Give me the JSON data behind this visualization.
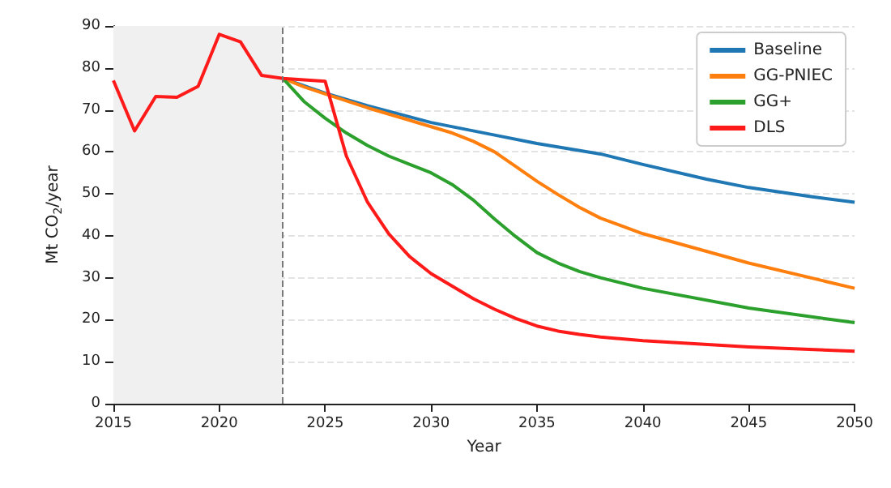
{
  "chart_data": {
    "type": "line",
    "xlabel": "Year",
    "ylabel": "Mt CO$_{2}$/year",
    "xlim": [
      2015,
      2050
    ],
    "xticks": [
      2015,
      2020,
      2025,
      2030,
      2035,
      2040,
      2045,
      2050
    ],
    "ylim": [
      0,
      90
    ],
    "yticks": [
      0,
      10,
      20,
      30,
      40,
      50,
      60,
      70,
      80,
      90
    ],
    "grid": "y",
    "legend": "top right",
    "marker": "none",
    "line_style": "solid",
    "series": [
      {
        "name": "Baseline",
        "color": "#1f77b4",
        "x": [
          2023,
          2025,
          2027,
          2030,
          2033,
          2035,
          2038,
          2040,
          2043,
          2045,
          2048,
          2050
        ],
        "values": [
          77.5,
          74,
          71,
          67,
          64,
          62,
          59.5,
          57,
          53.5,
          51.5,
          49.3,
          48
        ]
      },
      {
        "name": "GG-PNIEC",
        "color": "#ff7f0e",
        "x": [
          2023,
          2024,
          2025,
          2027,
          2030,
          2031,
          2032,
          2033,
          2034,
          2035,
          2036,
          2037,
          2038,
          2040,
          2045,
          2050
        ],
        "values": [
          77.5,
          75.5,
          73.8,
          70.5,
          66,
          64.5,
          62.5,
          60,
          56.5,
          53,
          49.8,
          46.8,
          44.2,
          40.5,
          33.5,
          27.5
        ]
      },
      {
        "name": "GG+",
        "color": "#2ca02c",
        "x": [
          2023,
          2024,
          2025,
          2026,
          2027,
          2028,
          2029,
          2030,
          2031,
          2032,
          2033,
          2034,
          2035,
          2036,
          2037,
          2038,
          2040,
          2045,
          2050
        ],
        "values": [
          77.5,
          72,
          68,
          64.5,
          61.5,
          59,
          57,
          55,
          52.2,
          48.5,
          44,
          39.8,
          36,
          33.5,
          31.5,
          30,
          27.5,
          22.8,
          19.3
        ]
      },
      {
        "name": "DLS",
        "color": "#ff1a1a",
        "x": [
          2015,
          2016,
          2017,
          2018,
          2019,
          2020,
          2021,
          2022,
          2023,
          2025,
          2026,
          2027,
          2028,
          2029,
          2030,
          2031,
          2032,
          2033,
          2034,
          2035,
          2036,
          2037,
          2038,
          2040,
          2045,
          2050
        ],
        "values": [
          77,
          65,
          73.2,
          73,
          75.6,
          88,
          86.2,
          78.2,
          77.5,
          76.8,
          59,
          48,
          40.5,
          35,
          31,
          28,
          25,
          22.5,
          20.3,
          18.5,
          17.3,
          16.5,
          15.9,
          15,
          13.5,
          12.5
        ]
      }
    ],
    "bands": [
      {
        "axis": "x",
        "from": 2015,
        "to": 2023,
        "color": "#f0f0f0"
      }
    ],
    "ref_lines": [
      {
        "axis": "x",
        "value": 2023,
        "color": "#777777",
        "line_style": "dashed"
      }
    ]
  }
}
